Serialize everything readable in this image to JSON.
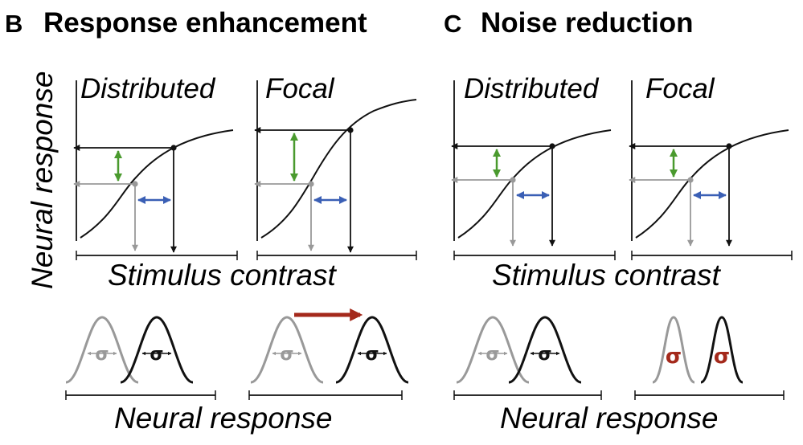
{
  "panel_b": {
    "letter": "B",
    "title": "Response enhancement",
    "sub_left": "Distributed",
    "sub_right": "Focal"
  },
  "panel_c": {
    "letter": "C",
    "title": "Noise reduction",
    "sub_left": "Distributed",
    "sub_right": "Focal"
  },
  "axes": {
    "y_label": "Neural response",
    "x_label_b": "Stimulus contrast",
    "x_label_c": "Stimulus contrast",
    "bottom_label_b": "Neural response",
    "bottom_label_c": "Neural response"
  },
  "symbols": {
    "sigma": "σ"
  },
  "colors": {
    "black": "#111111",
    "gray": "#999999",
    "green": "#4a9a2e",
    "blue": "#3a5fb5",
    "red": "#a4291b"
  }
}
